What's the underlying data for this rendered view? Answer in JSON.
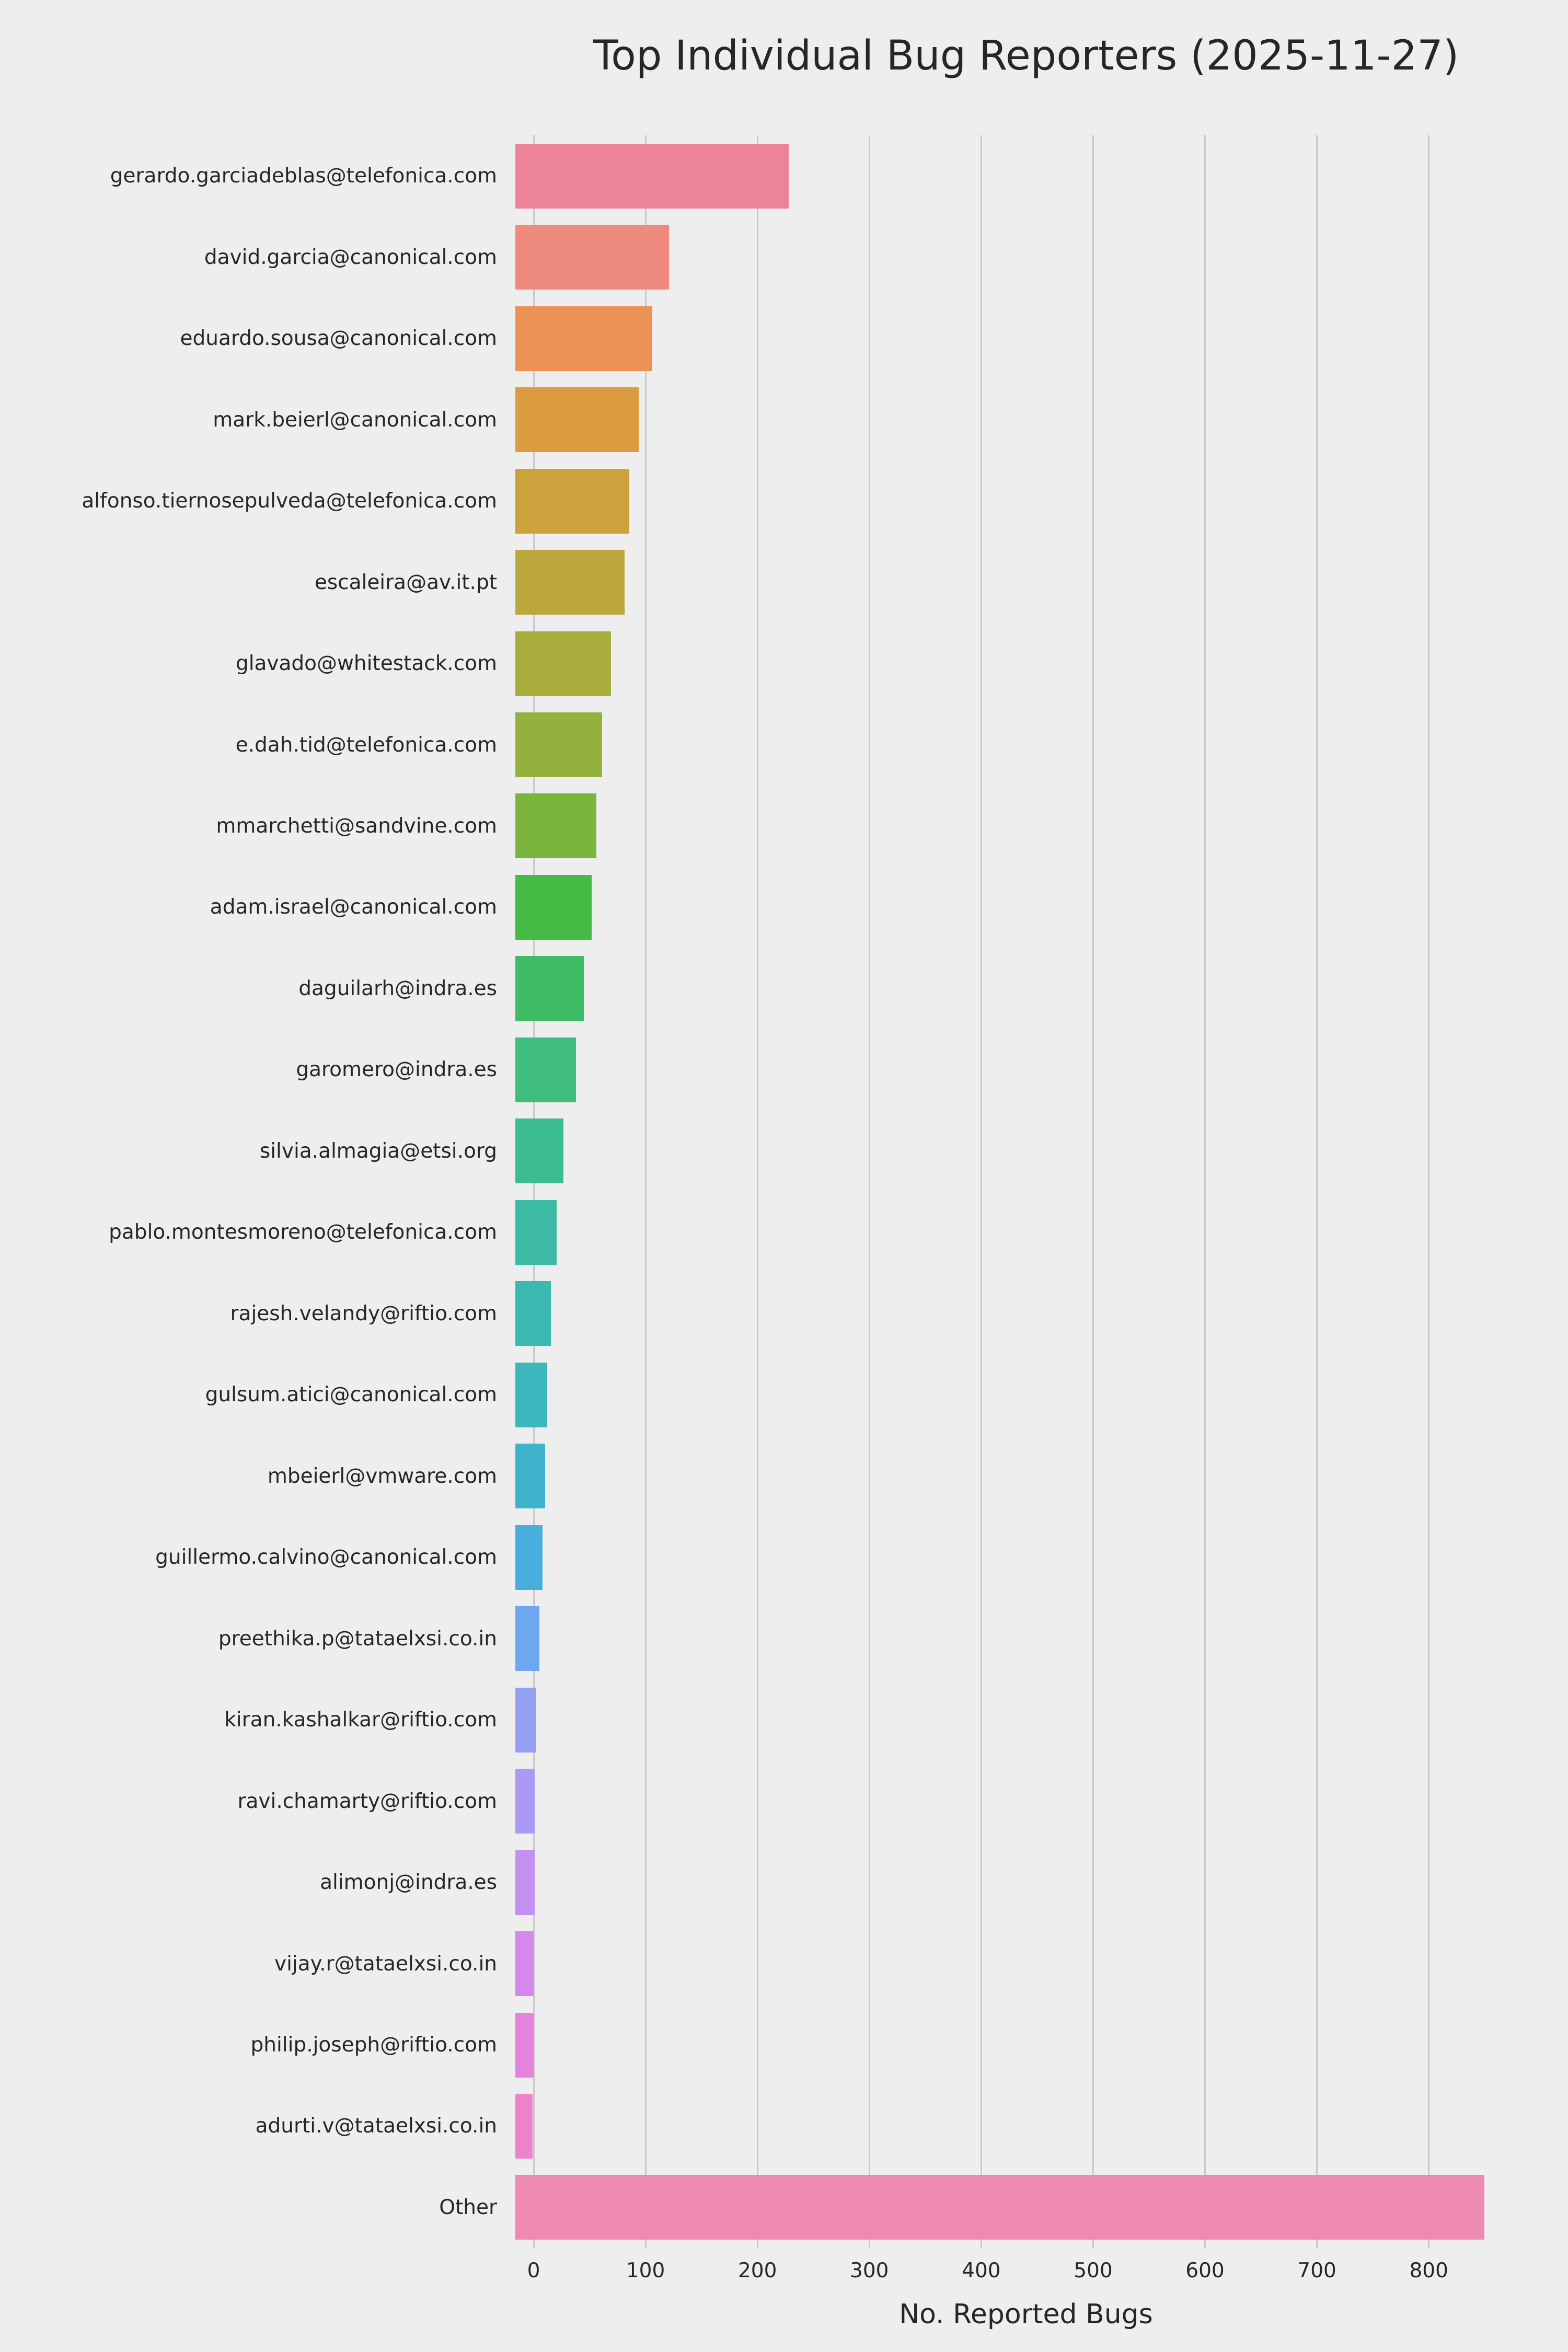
{
  "title": "Top Individual Bug Reporters (2025-11-27)",
  "xlabel": "No. Reported Bugs",
  "colors": {
    "background": "#eeeeee",
    "gridline": "#c9c9c9",
    "text": "#262626"
  },
  "chart_data": {
    "type": "bar",
    "orientation": "horizontal",
    "title": "Top Individual Bug Reporters (2025-11-27)",
    "xlabel": "No. Reported Bugs",
    "ylabel": "",
    "xlim": [
      0,
      880
    ],
    "x_ticks": [
      0,
      100,
      200,
      300,
      400,
      500,
      600,
      700,
      800
    ],
    "grid": true,
    "categories": [
      "gerardo.garciadeblas@telefonica.com",
      "david.garcia@canonical.com",
      "eduardo.sousa@canonical.com",
      "mark.beierl@canonical.com",
      "alfonso.tiernosepulveda@telefonica.com",
      "escaleira@av.it.pt",
      "glavado@whitestack.com",
      "e.dah.tid@telefonica.com",
      "mmarchetti@sandvine.com",
      "adam.israel@canonical.com",
      "daguilarh@indra.es",
      "garomero@indra.es",
      "silvia.almagia@etsi.org",
      "pablo.montesmoreno@telefonica.com",
      "rajesh.velandy@riftio.com",
      "gulsum.atici@canonical.com",
      "mbeierl@vmware.com",
      "guillermo.calvino@canonical.com",
      "preethika.p@tataelxsi.co.in",
      "kiran.kashalkar@riftio.com",
      "ravi.chamarty@riftio.com",
      "alimonj@indra.es",
      "vijay.r@tataelxsi.co.in",
      "philip.joseph@riftio.com",
      "adurti.v@tataelxsi.co.in",
      "Other"
    ],
    "values": [
      240,
      135,
      120,
      108,
      100,
      96,
      84,
      76,
      71,
      67,
      60,
      53,
      42,
      36,
      31,
      28,
      26,
      24,
      21,
      18,
      17,
      17,
      16,
      16,
      15,
      850
    ],
    "bar_colors": [
      "#ed8399",
      "#ef8a7e",
      "#ec9257",
      "#dc9b3e",
      "#cba23c",
      "#bca73c",
      "#a9ad3c",
      "#95b13d",
      "#7cb53e",
      "#45bb45",
      "#3fbc66",
      "#3ebd7f",
      "#3dbc92",
      "#3cbaa3",
      "#3bb9b0",
      "#3cb7bd",
      "#3eb3cb",
      "#47aedd",
      "#6ea7f0",
      "#95a0f2",
      "#ab99f3",
      "#c190f1",
      "#d488eb",
      "#e383dd",
      "#ec83cb",
      "#ee89b2"
    ]
  }
}
